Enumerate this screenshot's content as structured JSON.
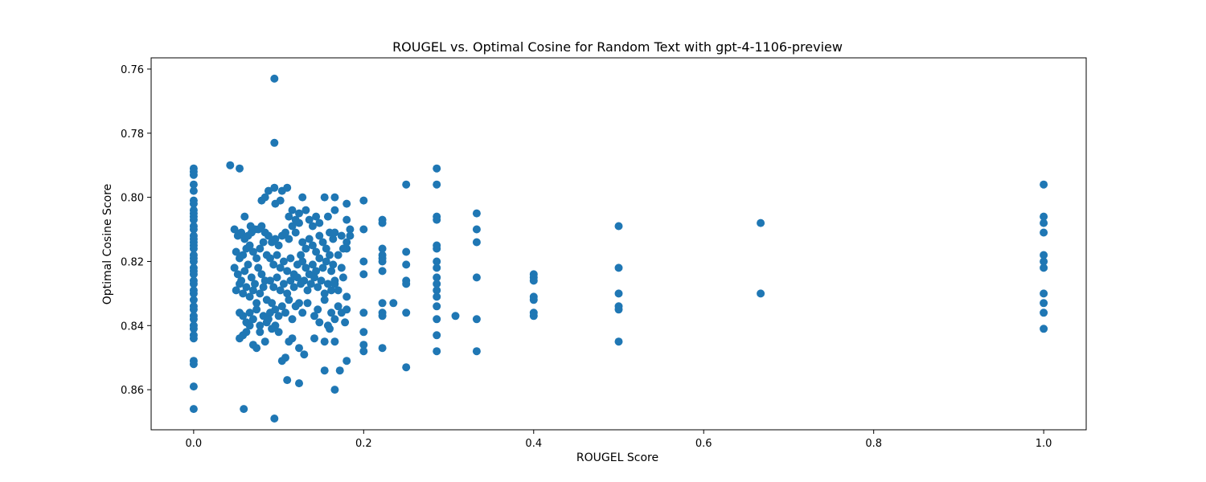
{
  "chart_data": {
    "type": "scatter",
    "title": "ROUGEL vs. Optimal Cosine for Random Text with gpt-4-1106-preview",
    "xlabel": "ROUGEL Score",
    "ylabel": "Optimal Cosine Score",
    "xlim": [
      -0.05,
      1.05
    ],
    "ylim": [
      0.8725,
      0.7565
    ],
    "y_inverted": true,
    "grid": false,
    "marker_color": "#1f77b4",
    "x_ticks": [
      "0.0",
      "0.2",
      "0.4",
      "0.6",
      "0.8",
      "1.0"
    ],
    "y_ticks": [
      "0.76",
      "0.78",
      "0.80",
      "0.82",
      "0.84",
      "0.86"
    ],
    "points": [
      [
        0.0,
        0.791
      ],
      [
        0.0,
        0.792
      ],
      [
        0.0,
        0.793
      ],
      [
        0.0,
        0.796
      ],
      [
        0.0,
        0.798
      ],
      [
        0.0,
        0.801
      ],
      [
        0.0,
        0.802
      ],
      [
        0.0,
        0.804
      ],
      [
        0.0,
        0.805
      ],
      [
        0.0,
        0.806
      ],
      [
        0.0,
        0.807
      ],
      [
        0.0,
        0.809
      ],
      [
        0.0,
        0.81
      ],
      [
        0.0,
        0.812
      ],
      [
        0.0,
        0.813
      ],
      [
        0.0,
        0.814
      ],
      [
        0.0,
        0.815
      ],
      [
        0.0,
        0.816
      ],
      [
        0.0,
        0.818
      ],
      [
        0.0,
        0.819
      ],
      [
        0.0,
        0.82
      ],
      [
        0.0,
        0.822
      ],
      [
        0.0,
        0.823
      ],
      [
        0.0,
        0.824
      ],
      [
        0.0,
        0.826
      ],
      [
        0.0,
        0.827
      ],
      [
        0.0,
        0.829
      ],
      [
        0.0,
        0.83
      ],
      [
        0.0,
        0.832
      ],
      [
        0.0,
        0.834
      ],
      [
        0.0,
        0.835
      ],
      [
        0.0,
        0.837
      ],
      [
        0.0,
        0.838
      ],
      [
        0.0,
        0.84
      ],
      [
        0.0,
        0.841
      ],
      [
        0.0,
        0.843
      ],
      [
        0.0,
        0.844
      ],
      [
        0.0,
        0.851
      ],
      [
        0.0,
        0.852
      ],
      [
        0.0,
        0.859
      ],
      [
        0.0,
        0.866
      ],
      [
        0.043,
        0.79
      ],
      [
        0.054,
        0.791
      ],
      [
        0.095,
        0.763
      ],
      [
        0.095,
        0.783
      ],
      [
        0.059,
        0.866
      ],
      [
        0.095,
        0.869
      ],
      [
        0.048,
        0.81
      ],
      [
        0.052,
        0.812
      ],
      [
        0.056,
        0.811
      ],
      [
        0.06,
        0.813
      ],
      [
        0.064,
        0.812
      ],
      [
        0.068,
        0.811
      ],
      [
        0.072,
        0.81
      ],
      [
        0.076,
        0.81
      ],
      [
        0.08,
        0.809
      ],
      [
        0.084,
        0.811
      ],
      [
        0.05,
        0.817
      ],
      [
        0.054,
        0.819
      ],
      [
        0.058,
        0.818
      ],
      [
        0.062,
        0.816
      ],
      [
        0.066,
        0.815
      ],
      [
        0.07,
        0.817
      ],
      [
        0.074,
        0.819
      ],
      [
        0.078,
        0.816
      ],
      [
        0.082,
        0.814
      ],
      [
        0.086,
        0.818
      ],
      [
        0.048,
        0.822
      ],
      [
        0.052,
        0.824
      ],
      [
        0.056,
        0.826
      ],
      [
        0.06,
        0.823
      ],
      [
        0.064,
        0.821
      ],
      [
        0.068,
        0.825
      ],
      [
        0.072,
        0.827
      ],
      [
        0.076,
        0.822
      ],
      [
        0.08,
        0.824
      ],
      [
        0.084,
        0.826
      ],
      [
        0.05,
        0.829
      ],
      [
        0.054,
        0.827
      ],
      [
        0.058,
        0.83
      ],
      [
        0.062,
        0.828
      ],
      [
        0.066,
        0.831
      ],
      [
        0.07,
        0.829
      ],
      [
        0.074,
        0.833
      ],
      [
        0.078,
        0.83
      ],
      [
        0.082,
        0.828
      ],
      [
        0.086,
        0.832
      ],
      [
        0.054,
        0.836
      ],
      [
        0.058,
        0.837
      ],
      [
        0.062,
        0.839
      ],
      [
        0.066,
        0.836
      ],
      [
        0.07,
        0.838
      ],
      [
        0.074,
        0.835
      ],
      [
        0.078,
        0.84
      ],
      [
        0.082,
        0.837
      ],
      [
        0.086,
        0.839
      ],
      [
        0.09,
        0.836
      ],
      [
        0.054,
        0.844
      ],
      [
        0.058,
        0.843
      ],
      [
        0.062,
        0.842
      ],
      [
        0.066,
        0.84
      ],
      [
        0.07,
        0.846
      ],
      [
        0.074,
        0.847
      ],
      [
        0.078,
        0.842
      ],
      [
        0.084,
        0.845
      ],
      [
        0.088,
        0.838
      ],
      [
        0.092,
        0.841
      ],
      [
        0.06,
        0.806
      ],
      [
        0.067,
        0.809
      ],
      [
        0.08,
        0.801
      ],
      [
        0.084,
        0.8
      ],
      [
        0.088,
        0.798
      ],
      [
        0.095,
        0.797
      ],
      [
        0.096,
        0.802
      ],
      [
        0.102,
        0.801
      ],
      [
        0.104,
        0.798
      ],
      [
        0.11,
        0.797
      ],
      [
        0.088,
        0.812
      ],
      [
        0.092,
        0.814
      ],
      [
        0.096,
        0.813
      ],
      [
        0.1,
        0.815
      ],
      [
        0.104,
        0.812
      ],
      [
        0.108,
        0.811
      ],
      [
        0.112,
        0.813
      ],
      [
        0.116,
        0.809
      ],
      [
        0.12,
        0.811
      ],
      [
        0.124,
        0.808
      ],
      [
        0.09,
        0.819
      ],
      [
        0.094,
        0.821
      ],
      [
        0.098,
        0.818
      ],
      [
        0.102,
        0.822
      ],
      [
        0.106,
        0.82
      ],
      [
        0.11,
        0.823
      ],
      [
        0.114,
        0.819
      ],
      [
        0.118,
        0.824
      ],
      [
        0.122,
        0.821
      ],
      [
        0.126,
        0.818
      ],
      [
        0.09,
        0.826
      ],
      [
        0.094,
        0.828
      ],
      [
        0.098,
        0.825
      ],
      [
        0.102,
        0.829
      ],
      [
        0.106,
        0.827
      ],
      [
        0.11,
        0.83
      ],
      [
        0.114,
        0.826
      ],
      [
        0.118,
        0.828
      ],
      [
        0.122,
        0.825
      ],
      [
        0.126,
        0.827
      ],
      [
        0.092,
        0.833
      ],
      [
        0.096,
        0.835
      ],
      [
        0.1,
        0.837
      ],
      [
        0.104,
        0.834
      ],
      [
        0.108,
        0.836
      ],
      [
        0.112,
        0.832
      ],
      [
        0.116,
        0.838
      ],
      [
        0.12,
        0.834
      ],
      [
        0.124,
        0.833
      ],
      [
        0.128,
        0.836
      ],
      [
        0.096,
        0.84
      ],
      [
        0.1,
        0.842
      ],
      [
        0.104,
        0.851
      ],
      [
        0.108,
        0.85
      ],
      [
        0.112,
        0.845
      ],
      [
        0.116,
        0.844
      ],
      [
        0.124,
        0.847
      ],
      [
        0.13,
        0.849
      ],
      [
        0.11,
        0.857
      ],
      [
        0.124,
        0.858
      ],
      [
        0.112,
        0.806
      ],
      [
        0.116,
        0.804
      ],
      [
        0.12,
        0.807
      ],
      [
        0.124,
        0.805
      ],
      [
        0.128,
        0.8
      ],
      [
        0.132,
        0.804
      ],
      [
        0.136,
        0.807
      ],
      [
        0.14,
        0.809
      ],
      [
        0.144,
        0.806
      ],
      [
        0.148,
        0.808
      ],
      [
        0.128,
        0.814
      ],
      [
        0.132,
        0.816
      ],
      [
        0.136,
        0.813
      ],
      [
        0.14,
        0.815
      ],
      [
        0.144,
        0.817
      ],
      [
        0.148,
        0.812
      ],
      [
        0.152,
        0.814
      ],
      [
        0.156,
        0.816
      ],
      [
        0.16,
        0.811
      ],
      [
        0.164,
        0.813
      ],
      [
        0.128,
        0.82
      ],
      [
        0.132,
        0.822
      ],
      [
        0.136,
        0.824
      ],
      [
        0.14,
        0.821
      ],
      [
        0.144,
        0.823
      ],
      [
        0.148,
        0.819
      ],
      [
        0.152,
        0.822
      ],
      [
        0.156,
        0.82
      ],
      [
        0.16,
        0.818
      ],
      [
        0.164,
        0.821
      ],
      [
        0.13,
        0.826
      ],
      [
        0.134,
        0.829
      ],
      [
        0.138,
        0.827
      ],
      [
        0.142,
        0.825
      ],
      [
        0.146,
        0.828
      ],
      [
        0.15,
        0.826
      ],
      [
        0.154,
        0.83
      ],
      [
        0.158,
        0.827
      ],
      [
        0.162,
        0.829
      ],
      [
        0.166,
        0.826
      ],
      [
        0.134,
        0.833
      ],
      [
        0.142,
        0.837
      ],
      [
        0.146,
        0.835
      ],
      [
        0.154,
        0.832
      ],
      [
        0.158,
        0.84
      ],
      [
        0.162,
        0.836
      ],
      [
        0.166,
        0.838
      ],
      [
        0.17,
        0.834
      ],
      [
        0.174,
        0.836
      ],
      [
        0.18,
        0.835
      ],
      [
        0.142,
        0.844
      ],
      [
        0.154,
        0.845
      ],
      [
        0.16,
        0.841
      ],
      [
        0.166,
        0.845
      ],
      [
        0.178,
        0.839
      ],
      [
        0.154,
        0.854
      ],
      [
        0.166,
        0.86
      ],
      [
        0.172,
        0.854
      ],
      [
        0.18,
        0.851
      ],
      [
        0.148,
        0.839
      ],
      [
        0.154,
        0.8
      ],
      [
        0.166,
        0.8
      ],
      [
        0.18,
        0.802
      ],
      [
        0.158,
        0.806
      ],
      [
        0.166,
        0.804
      ],
      [
        0.18,
        0.807
      ],
      [
        0.174,
        0.812
      ],
      [
        0.18,
        0.814
      ],
      [
        0.18,
        0.816
      ],
      [
        0.166,
        0.811
      ],
      [
        0.17,
        0.818
      ],
      [
        0.174,
        0.822
      ],
      [
        0.166,
        0.827
      ],
      [
        0.17,
        0.829
      ],
      [
        0.18,
        0.831
      ],
      [
        0.176,
        0.825
      ],
      [
        0.162,
        0.823
      ],
      [
        0.176,
        0.816
      ],
      [
        0.184,
        0.812
      ],
      [
        0.184,
        0.81
      ],
      [
        0.2,
        0.801
      ],
      [
        0.2,
        0.81
      ],
      [
        0.2,
        0.82
      ],
      [
        0.2,
        0.824
      ],
      [
        0.2,
        0.836
      ],
      [
        0.2,
        0.842
      ],
      [
        0.2,
        0.846
      ],
      [
        0.2,
        0.848
      ],
      [
        0.222,
        0.807
      ],
      [
        0.222,
        0.808
      ],
      [
        0.222,
        0.816
      ],
      [
        0.222,
        0.818
      ],
      [
        0.222,
        0.819
      ],
      [
        0.222,
        0.82
      ],
      [
        0.222,
        0.823
      ],
      [
        0.222,
        0.833
      ],
      [
        0.222,
        0.836
      ],
      [
        0.222,
        0.837
      ],
      [
        0.222,
        0.847
      ],
      [
        0.235,
        0.833
      ],
      [
        0.25,
        0.796
      ],
      [
        0.25,
        0.817
      ],
      [
        0.25,
        0.821
      ],
      [
        0.25,
        0.826
      ],
      [
        0.25,
        0.827
      ],
      [
        0.25,
        0.836
      ],
      [
        0.25,
        0.853
      ],
      [
        0.286,
        0.791
      ],
      [
        0.286,
        0.796
      ],
      [
        0.286,
        0.806
      ],
      [
        0.286,
        0.807
      ],
      [
        0.286,
        0.815
      ],
      [
        0.286,
        0.816
      ],
      [
        0.286,
        0.82
      ],
      [
        0.286,
        0.822
      ],
      [
        0.286,
        0.825
      ],
      [
        0.286,
        0.827
      ],
      [
        0.286,
        0.829
      ],
      [
        0.286,
        0.831
      ],
      [
        0.286,
        0.834
      ],
      [
        0.286,
        0.838
      ],
      [
        0.286,
        0.843
      ],
      [
        0.286,
        0.848
      ],
      [
        0.308,
        0.837
      ],
      [
        0.333,
        0.805
      ],
      [
        0.333,
        0.81
      ],
      [
        0.333,
        0.814
      ],
      [
        0.333,
        0.825
      ],
      [
        0.333,
        0.838
      ],
      [
        0.333,
        0.848
      ],
      [
        0.4,
        0.824
      ],
      [
        0.4,
        0.825
      ],
      [
        0.4,
        0.826
      ],
      [
        0.4,
        0.831
      ],
      [
        0.4,
        0.832
      ],
      [
        0.4,
        0.836
      ],
      [
        0.4,
        0.837
      ],
      [
        0.5,
        0.809
      ],
      [
        0.5,
        0.822
      ],
      [
        0.5,
        0.83
      ],
      [
        0.5,
        0.834
      ],
      [
        0.5,
        0.835
      ],
      [
        0.5,
        0.845
      ],
      [
        0.667,
        0.808
      ],
      [
        0.667,
        0.83
      ],
      [
        1.0,
        0.796
      ],
      [
        1.0,
        0.806
      ],
      [
        1.0,
        0.808
      ],
      [
        1.0,
        0.811
      ],
      [
        1.0,
        0.818
      ],
      [
        1.0,
        0.82
      ],
      [
        1.0,
        0.822
      ],
      [
        1.0,
        0.83
      ],
      [
        1.0,
        0.833
      ],
      [
        1.0,
        0.836
      ],
      [
        1.0,
        0.841
      ]
    ]
  }
}
